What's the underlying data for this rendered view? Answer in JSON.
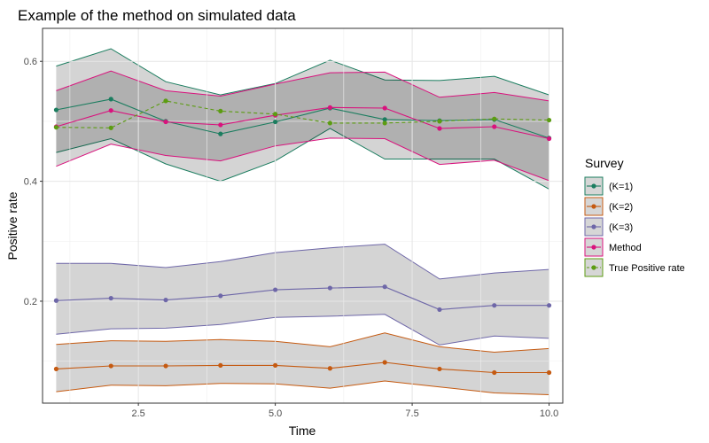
{
  "chart_data": {
    "type": "line",
    "title": "Example of the method on simulated data",
    "xlabel": "Time",
    "ylabel": "Positive rate",
    "xlim": [
      0.75,
      10.25
    ],
    "ylim": [
      0.03,
      0.655
    ],
    "xticks": [
      2.5,
      5.0,
      7.5,
      10.0
    ],
    "xtick_labels": [
      "2.5",
      "5.0",
      "7.5",
      "10.0"
    ],
    "yticks": [
      0.2,
      0.4,
      0.6
    ],
    "ytick_labels": [
      "0.2",
      "0.4",
      "0.6"
    ],
    "grid": true,
    "legend": {
      "title": "Survey",
      "position": "right"
    },
    "x": [
      1,
      2,
      3,
      4,
      5,
      6,
      7,
      8,
      9,
      10
    ],
    "series": [
      {
        "name": "(K=1)",
        "color": "#1b7d5f",
        "dashed": false,
        "values": [
          0.519,
          0.537,
          0.5,
          0.479,
          0.499,
          0.522,
          0.503,
          0.501,
          0.503,
          0.472
        ],
        "lower": [
          0.448,
          0.471,
          0.429,
          0.4,
          0.434,
          0.488,
          0.437,
          0.437,
          0.437,
          0.387
        ],
        "upper": [
          0.592,
          0.621,
          0.566,
          0.544,
          0.563,
          0.602,
          0.569,
          0.568,
          0.575,
          0.544
        ]
      },
      {
        "name": "(K=2)",
        "color": "#c55a11",
        "dashed": false,
        "values": [
          0.087,
          0.092,
          0.092,
          0.093,
          0.093,
          0.088,
          0.098,
          0.087,
          0.081,
          0.081
        ],
        "lower": [
          0.049,
          0.06,
          0.059,
          0.063,
          0.062,
          0.055,
          0.067,
          0.057,
          0.047,
          0.044
        ],
        "upper": [
          0.128,
          0.134,
          0.133,
          0.136,
          0.133,
          0.124,
          0.147,
          0.124,
          0.115,
          0.121
        ]
      },
      {
        "name": "(K=3)",
        "color": "#6e67a8",
        "dashed": false,
        "values": [
          0.201,
          0.205,
          0.202,
          0.209,
          0.219,
          0.222,
          0.224,
          0.186,
          0.193,
          0.193
        ],
        "lower": [
          0.145,
          0.154,
          0.155,
          0.161,
          0.173,
          0.175,
          0.178,
          0.127,
          0.142,
          0.138
        ],
        "upper": [
          0.263,
          0.263,
          0.256,
          0.266,
          0.281,
          0.289,
          0.295,
          0.237,
          0.247,
          0.253
        ]
      },
      {
        "name": "Method",
        "color": "#d9127d",
        "dashed": false,
        "values": [
          0.491,
          0.518,
          0.499,
          0.494,
          0.51,
          0.523,
          0.522,
          0.488,
          0.491,
          0.471
        ],
        "lower": [
          0.425,
          0.462,
          0.443,
          0.434,
          0.459,
          0.472,
          0.471,
          0.428,
          0.435,
          0.401
        ],
        "upper": [
          0.551,
          0.584,
          0.551,
          0.542,
          0.562,
          0.581,
          0.582,
          0.54,
          0.548,
          0.534
        ]
      },
      {
        "name": "True Positive rate",
        "color": "#5c9c12",
        "dashed": true,
        "values": [
          0.49,
          0.489,
          0.534,
          0.517,
          0.512,
          0.497,
          0.497,
          0.5,
          0.504,
          0.502
        ]
      }
    ]
  }
}
